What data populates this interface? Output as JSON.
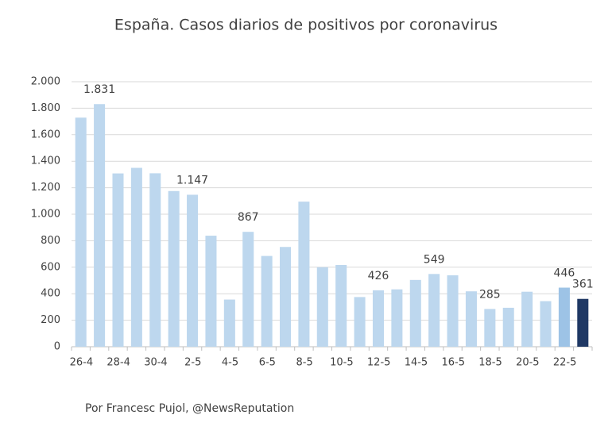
{
  "chart_data": {
    "type": "bar",
    "title": "España. Casos diarios de positivos por coronavirus",
    "source": "Por Francesc Pujol, @NewsReputation",
    "categories": [
      "26-4",
      null,
      "28-4",
      null,
      "30-4",
      null,
      "2-5",
      null,
      "4-5",
      null,
      "6-5",
      null,
      "8-5",
      null,
      "10-5",
      null,
      "12-5",
      null,
      "14-5",
      null,
      "16-5",
      null,
      "18-5",
      null,
      "20-5",
      null,
      "22-5",
      null
    ],
    "values": [
      1729,
      1831,
      1308,
      1350,
      1309,
      1175,
      1147,
      838,
      356,
      867,
      685,
      753,
      1095,
      600,
      617,
      375,
      426,
      433,
      504,
      549,
      539,
      418,
      285,
      294,
      415,
      344,
      446,
      361
    ],
    "value_labels": [
      null,
      "1.831",
      null,
      null,
      null,
      null,
      "1.147",
      null,
      null,
      "867",
      null,
      null,
      null,
      null,
      null,
      null,
      "426",
      null,
      null,
      "549",
      null,
      null,
      "285",
      null,
      null,
      null,
      "446",
      "361"
    ],
    "colors": [
      "#bdd7ee",
      "#bdd7ee",
      "#bdd7ee",
      "#bdd7ee",
      "#bdd7ee",
      "#bdd7ee",
      "#bdd7ee",
      "#bdd7ee",
      "#bdd7ee",
      "#bdd7ee",
      "#bdd7ee",
      "#bdd7ee",
      "#bdd7ee",
      "#bdd7ee",
      "#bdd7ee",
      "#bdd7ee",
      "#bdd7ee",
      "#bdd7ee",
      "#bdd7ee",
      "#bdd7ee",
      "#bdd7ee",
      "#bdd7ee",
      "#bdd7ee",
      "#bdd7ee",
      "#bdd7ee",
      "#bdd7ee",
      "#9dc3e6",
      "#1f3864"
    ],
    "ylim": [
      0,
      2000
    ],
    "yticks": [
      0,
      200,
      400,
      600,
      800,
      {
        "value": 1000,
        "label": "1.000"
      },
      {
        "value": 1200,
        "label": "1.200"
      },
      {
        "value": 1400,
        "label": "1.400"
      },
      {
        "value": 1600,
        "label": "1.600"
      },
      {
        "value": 1800,
        "label": "1.800"
      },
      {
        "value": 2000,
        "label": "2.000"
      }
    ],
    "grid": true
  }
}
